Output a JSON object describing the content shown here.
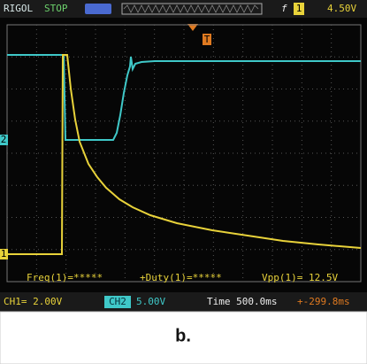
{
  "header": {
    "brand": "RIGOL",
    "status": "STOP",
    "trigger_edge": "f",
    "trigger_channel": "1",
    "trigger_level": "4.50V"
  },
  "markers": {
    "trigger_position": "T",
    "channel2": "2",
    "channel1": "1"
  },
  "measurements": [
    "Freq(1)=*****",
    "+Duty(1)=*****",
    "Vpp(1)= 12.5V"
  ],
  "status_bar": {
    "ch1": "CH1= 2.00V",
    "ch2_label": "CH2",
    "ch2_scale": "5.00V",
    "time": "Time 500.0ms",
    "offset": "+-299.8ms"
  },
  "caption": "b."
}
